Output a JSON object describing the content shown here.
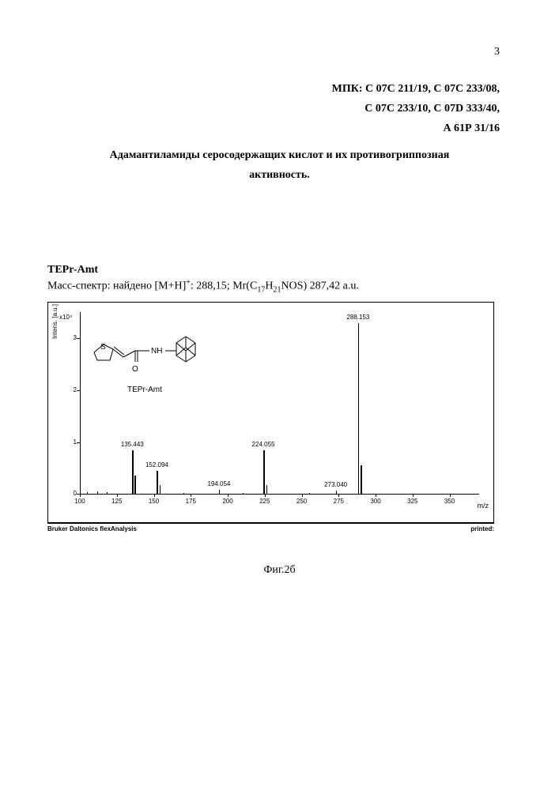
{
  "page_number": "3",
  "ipc_lines": [
    "МПК: С 07С  211/19,  С 07С  233/08,",
    "С 07С  233/10, С 07D 333/40,",
    "А 61Р 31/16"
  ],
  "title_line1": "Адамантиламиды серосодержащих кислот и их противогриппозная",
  "title_line2": "активность.",
  "compound": {
    "name": "TEPr-Amt",
    "mass_line_prefix": "Масс-спектр: найдено [M+H]",
    "mass_line_sup": "+",
    "mass_line_mid": ": 288,15; Mr(C",
    "formula_c": "17",
    "formula_mid": "H",
    "formula_h": "21",
    "formula_tail": "NOS) 287,42 a.u."
  },
  "chart": {
    "type": "mass-spectrum",
    "y_axis_label": "Intens. [a.u.]",
    "y_exp": "x10⁴",
    "x_axis_label": "m/z",
    "xlim": [
      100,
      370
    ],
    "ylim": [
      0,
      3.5
    ],
    "yticks": [
      0,
      1,
      2,
      3
    ],
    "xticks": [
      100,
      125,
      150,
      175,
      200,
      225,
      250,
      275,
      300,
      325,
      350
    ],
    "background_color": "#ffffff",
    "axis_color": "#000000",
    "peak_color": "#000000",
    "label_fontsize": 8,
    "peaks": [
      {
        "mz": 135.443,
        "intensity": 0.85,
        "label": "135.443"
      },
      {
        "mz": 137,
        "intensity": 0.35,
        "label": ""
      },
      {
        "mz": 152.094,
        "intensity": 0.45,
        "label": "152.094"
      },
      {
        "mz": 154,
        "intensity": 0.18,
        "label": ""
      },
      {
        "mz": 194.054,
        "intensity": 0.08,
        "label": "194.054"
      },
      {
        "mz": 224.055,
        "intensity": 0.85,
        "label": "224.055"
      },
      {
        "mz": 226,
        "intensity": 0.18,
        "label": ""
      },
      {
        "mz": 273.04,
        "intensity": 0.07,
        "label": "273.040"
      },
      {
        "mz": 288.153,
        "intensity": 3.3,
        "label": "288.153"
      },
      {
        "mz": 290,
        "intensity": 0.55,
        "label": ""
      }
    ],
    "noise_peaks": [
      {
        "mz": 105,
        "intensity": 0.04
      },
      {
        "mz": 112,
        "intensity": 0.05
      },
      {
        "mz": 118,
        "intensity": 0.03
      },
      {
        "mz": 170,
        "intensity": 0.02
      },
      {
        "mz": 210,
        "intensity": 0.02
      },
      {
        "mz": 255,
        "intensity": 0.02
      }
    ]
  },
  "footer": {
    "left": "Bruker Daltonics flexAnalysis",
    "right": "printed:"
  },
  "structure_label": "TEPr-Amt",
  "figure_caption": "Фиг.2б"
}
